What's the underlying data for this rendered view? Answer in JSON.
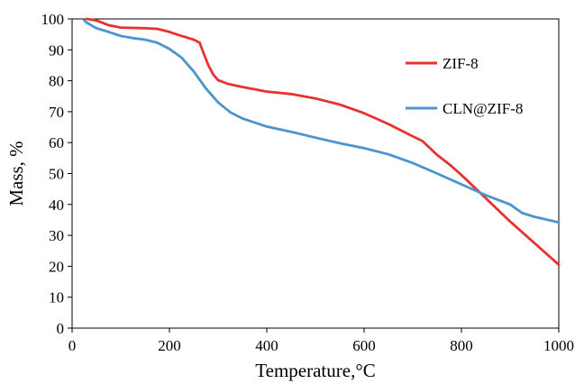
{
  "chart_data": {
    "type": "line",
    "xlabel": "Temperature,°C",
    "ylabel": "Mass, %",
    "xlim": [
      0,
      1000
    ],
    "ylim": [
      0,
      100
    ],
    "xticks": [
      0,
      200,
      400,
      600,
      800,
      1000
    ],
    "yticks": [
      0,
      10,
      20,
      30,
      40,
      50,
      60,
      70,
      80,
      90,
      100
    ],
    "grid": false,
    "legend_position": "top-right",
    "series": [
      {
        "name": "ZIF-8",
        "color": "#e8322f",
        "x": [
          30,
          50,
          75,
          100,
          150,
          175,
          200,
          225,
          250,
          262,
          270,
          280,
          290,
          300,
          320,
          350,
          400,
          450,
          500,
          550,
          600,
          650,
          700,
          720,
          750,
          775,
          800,
          850,
          900,
          950,
          1000
        ],
        "y": [
          100,
          99.5,
          98,
          97.2,
          97,
          96.8,
          95.8,
          94.5,
          93.3,
          92.3,
          89,
          85,
          82,
          80.2,
          79,
          78,
          76.5,
          75.7,
          74.3,
          72.3,
          69.5,
          66,
          62,
          60.5,
          56,
          53,
          49.5,
          42,
          34.5,
          27.5,
          20.5
        ]
      },
      {
        "name": "CLN@ZIF-8",
        "color": "#4a95cf",
        "x": [
          25,
          30,
          50,
          75,
          100,
          125,
          150,
          175,
          200,
          225,
          250,
          275,
          300,
          325,
          350,
          400,
          450,
          500,
          550,
          600,
          650,
          700,
          750,
          800,
          850,
          875,
          900,
          925,
          950,
          1000
        ],
        "y": [
          99.5,
          98.8,
          97,
          95.8,
          94.5,
          93.8,
          93.3,
          92.3,
          90.3,
          87.5,
          83,
          77.5,
          73,
          69.8,
          67.8,
          65.2,
          63.5,
          61.6,
          59.8,
          58.2,
          56.2,
          53.4,
          50,
          46.5,
          43,
          41.5,
          40,
          37.2,
          36,
          34.2
        ]
      }
    ]
  }
}
